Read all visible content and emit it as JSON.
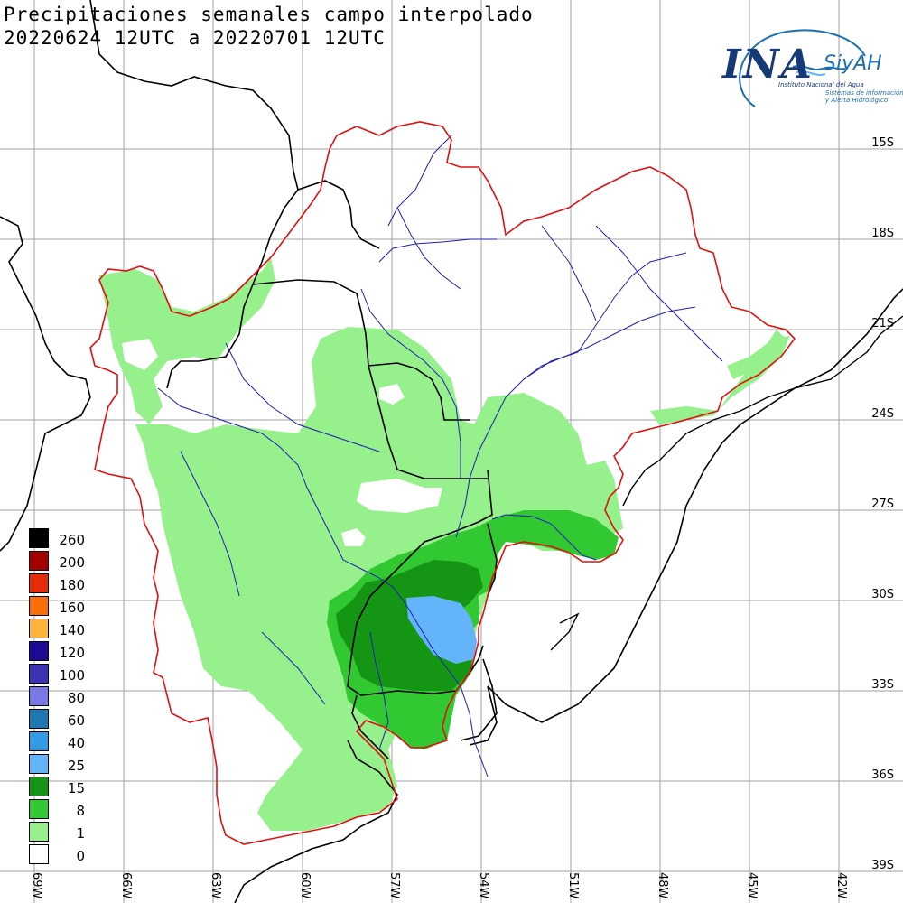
{
  "title": {
    "line1": "Precipitaciones semanales campo interpolado",
    "line2": "20220624 12UTC a 20220701 12UTC"
  },
  "logo": {
    "org": "INA",
    "system": "SiyAH",
    "subtitle": "Instituto Nacional del Agua",
    "tagline1": "Sistemas de información",
    "tagline2": "y Alerta Hidrológico"
  },
  "latitude_labels": [
    "15S",
    "18S",
    "21S",
    "24S",
    "27S",
    "30S",
    "33S",
    "36S",
    "39S"
  ],
  "longitude_labels": [
    "69W",
    "66W",
    "63W",
    "60W",
    "57W",
    "54W",
    "51W",
    "48W",
    "45W",
    "42W"
  ],
  "legend": {
    "items": [
      {
        "label": "260",
        "color": "#000000"
      },
      {
        "label": "200",
        "color": "#a50000"
      },
      {
        "label": "180",
        "color": "#e62d0a"
      },
      {
        "label": "160",
        "color": "#fa6e0a"
      },
      {
        "label": "140",
        "color": "#ffb43c"
      },
      {
        "label": "120",
        "color": "#1e0a96"
      },
      {
        "label": "100",
        "color": "#3c32b4"
      },
      {
        "label": "80",
        "color": "#7878e6"
      },
      {
        "label": "60",
        "color": "#1e78b4"
      },
      {
        "label": "40",
        "color": "#329be6"
      },
      {
        "label": "25",
        "color": "#64b4fa"
      },
      {
        "label": "15",
        "color": "#149614"
      },
      {
        "label": "8",
        "color": "#32c832"
      },
      {
        "label": "1",
        "color": "#96f08c"
      },
      {
        "label": "0",
        "color": "#ffffff"
      }
    ]
  },
  "map_colors": {
    "basin_outline": "#e01010",
    "rivers": "#1e1eb4",
    "borders": "#000000",
    "grid": "#a0a0a0"
  }
}
